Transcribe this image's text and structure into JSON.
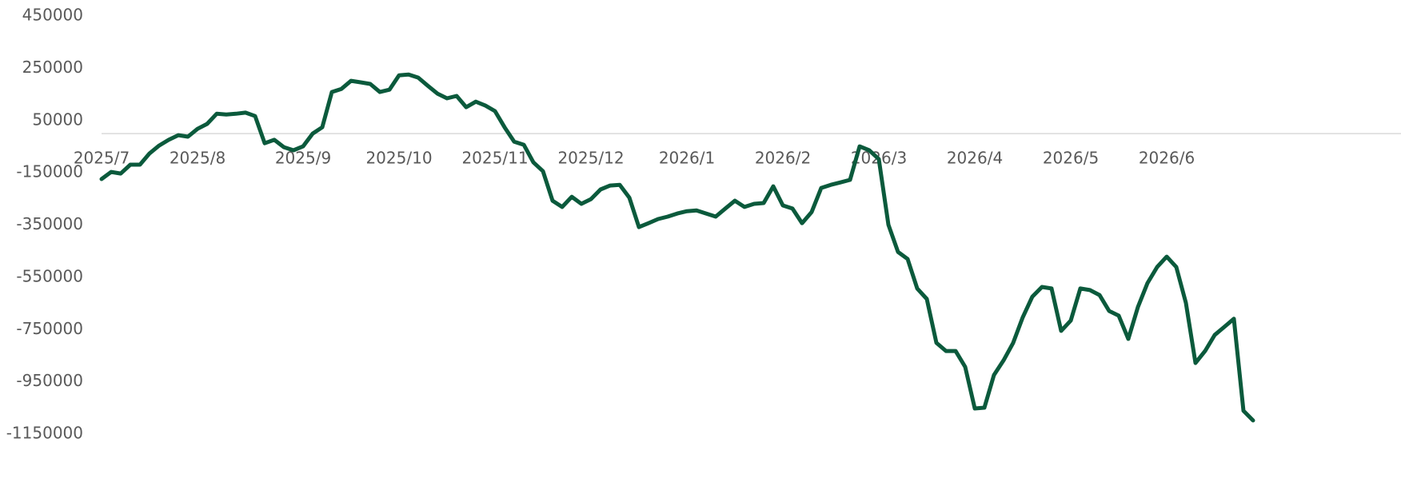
{
  "chart_data": {
    "type": "line",
    "categories": [
      "2025/7",
      null,
      null,
      null,
      null,
      null,
      null,
      null,
      null,
      null,
      "2025/8",
      null,
      null,
      null,
      null,
      null,
      null,
      null,
      null,
      null,
      null,
      "2025/9",
      null,
      null,
      null,
      null,
      null,
      null,
      null,
      null,
      null,
      "2025/10",
      null,
      null,
      null,
      null,
      null,
      null,
      null,
      null,
      null,
      "2025/11",
      null,
      null,
      null,
      null,
      null,
      null,
      null,
      null,
      null,
      "2025/12",
      null,
      null,
      null,
      null,
      null,
      null,
      null,
      null,
      null,
      "2026/1",
      null,
      null,
      null,
      null,
      null,
      null,
      null,
      null,
      null,
      "2026/2",
      null,
      null,
      null,
      null,
      null,
      null,
      null,
      null,
      null,
      "2026/3",
      null,
      null,
      null,
      null,
      null,
      null,
      null,
      null,
      null,
      "2026/4",
      null,
      null,
      null,
      null,
      null,
      null,
      null,
      null,
      null,
      "2026/5",
      null,
      null,
      null,
      null,
      null,
      null,
      null,
      null,
      null,
      "2026/6",
      null,
      null,
      null,
      null,
      null,
      null,
      null,
      null,
      null
    ],
    "series": [
      {
        "color": "#0b5a3c",
        "values": [
          -174000,
          -147000,
          -153000,
          -119000,
          -119000,
          -76000,
          -46000,
          -24000,
          -6000,
          -12000,
          18000,
          37000,
          76000,
          73000,
          76000,
          80000,
          67000,
          -37000,
          -24000,
          -52000,
          -64000,
          -49000,
          0,
          24000,
          159000,
          171000,
          202000,
          196000,
          190000,
          159000,
          168000,
          223000,
          226000,
          214000,
          183000,
          153000,
          135000,
          144000,
          101000,
          122000,
          107000,
          86000,
          24000,
          -31000,
          -43000,
          -110000,
          -144000,
          -257000,
          -281000,
          -242000,
          -269000,
          -251000,
          -214000,
          -199000,
          -196000,
          -245000,
          -358000,
          -343000,
          -327000,
          -318000,
          -306000,
          -297000,
          -294000,
          -306000,
          -318000,
          -287000,
          -257000,
          -281000,
          -269000,
          -266000,
          -202000,
          -275000,
          -287000,
          -343000,
          -300000,
          -208000,
          -196000,
          -187000,
          -177000,
          -49000,
          -64000,
          -98000,
          -349000,
          -453000,
          -480000,
          -593000,
          -633000,
          -801000,
          -832000,
          -832000,
          -893000,
          -1052000,
          -1049000,
          -924000,
          -868000,
          -801000,
          -703000,
          -624000,
          -587000,
          -593000,
          -755000,
          -716000,
          -593000,
          -599000,
          -618000,
          -679000,
          -697000,
          -786000,
          -664000,
          -572000,
          -511000,
          -471000,
          -511000,
          -648000,
          -878000,
          -832000,
          -771000,
          -740000,
          -709000,
          -1061000,
          -1098000
        ]
      }
    ],
    "ylim": [
      -1150000,
      450000
    ],
    "yticks": [
      450000,
      250000,
      50000,
      -150000,
      -350000,
      -550000,
      -750000,
      -950000,
      -1150000
    ]
  }
}
